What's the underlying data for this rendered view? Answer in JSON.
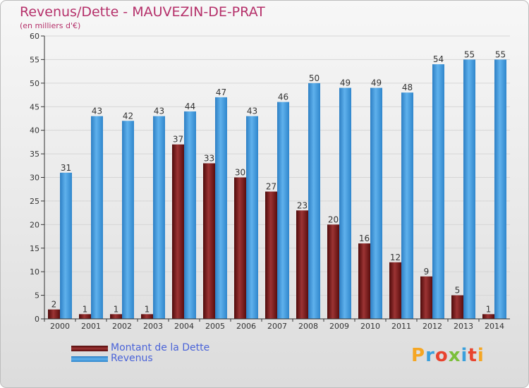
{
  "chart_data": {
    "type": "bar",
    "title": "Revenus/Dette - MAUVEZIN-DE-PRAT",
    "subtitle": "(en milliers d'€)",
    "categories": [
      "2000",
      "2001",
      "2002",
      "2003",
      "2004",
      "2005",
      "2006",
      "2007",
      "2008",
      "2009",
      "2010",
      "2011",
      "2012",
      "2013",
      "2014"
    ],
    "series": [
      {
        "name": "Montant de la Dette",
        "color": "#7a1a1a",
        "values": [
          2,
          1,
          1,
          1,
          37,
          33,
          30,
          27,
          23,
          20,
          16,
          12,
          9,
          5,
          1
        ]
      },
      {
        "name": "Revenus",
        "color": "#3d95dc",
        "values": [
          31,
          43,
          42,
          43,
          44,
          47,
          43,
          46,
          50,
          49,
          49,
          48,
          54,
          55,
          55
        ]
      }
    ],
    "ylim": [
      0,
      60
    ],
    "yticks": [
      0,
      5,
      10,
      15,
      20,
      25,
      30,
      35,
      40,
      45,
      50,
      55,
      60
    ],
    "grid": true,
    "legend_position": "bottom-left"
  },
  "logo": {
    "text": "Proxiti",
    "colors": [
      "#f5a623",
      "#3aa0dc",
      "#e8432e",
      "#7bbf3a",
      "#3aa0dc",
      "#e8432e",
      "#f5a623"
    ]
  }
}
